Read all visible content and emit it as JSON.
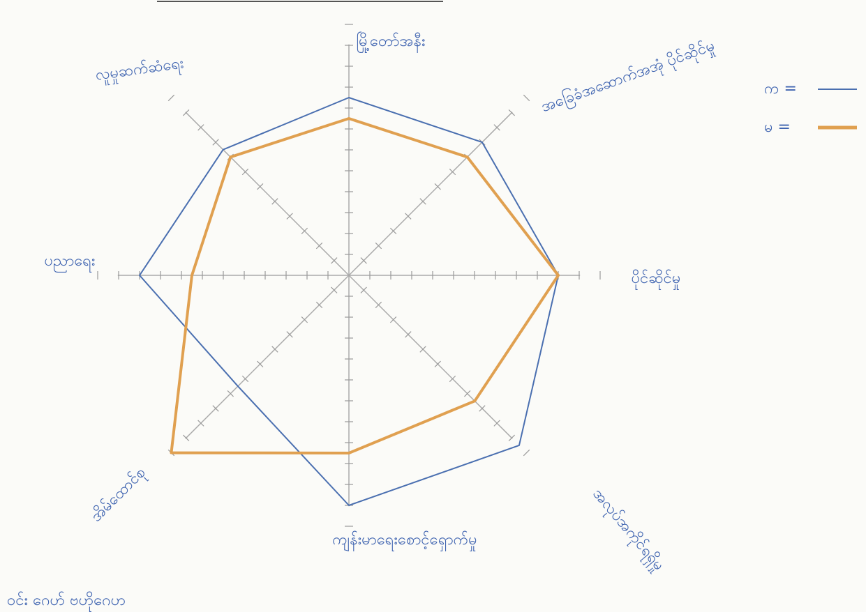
{
  "chart_data": {
    "type": "radar",
    "categories": [
      "မြို့တော်အနီး",
      "အခြေခံအဆောက်အအုံ ပိုင်ဆိုင်မှု",
      "ပိုင်ဆိုင်မှု",
      "အလုပ်အကိုင်ရရှိမှု",
      "ကျန်းမာရေးစောင့်ရှောက်မှု",
      "အိမ်ထောင်စု",
      "ပညာရေး",
      "လူမှုဆက်ဆံရေး"
    ],
    "series": [
      {
        "name": "က =",
        "color": "#4a6fb0",
        "values": [
          8.5,
          9,
          10,
          11.5,
          11,
          7.5,
          10,
          8.5
        ]
      },
      {
        "name": "မ =",
        "color": "#e0a050",
        "values": [
          7.5,
          8,
          10,
          8.5,
          8.5,
          12,
          7.5,
          8
        ]
      }
    ],
    "ylim": [
      0,
      12
    ],
    "yticks": [
      1,
      2,
      3,
      4,
      5,
      6,
      7,
      8,
      9,
      10,
      11,
      12
    ],
    "note": "ဝင်း ဂေဟ် ဗဟိုဂေဟ"
  }
}
